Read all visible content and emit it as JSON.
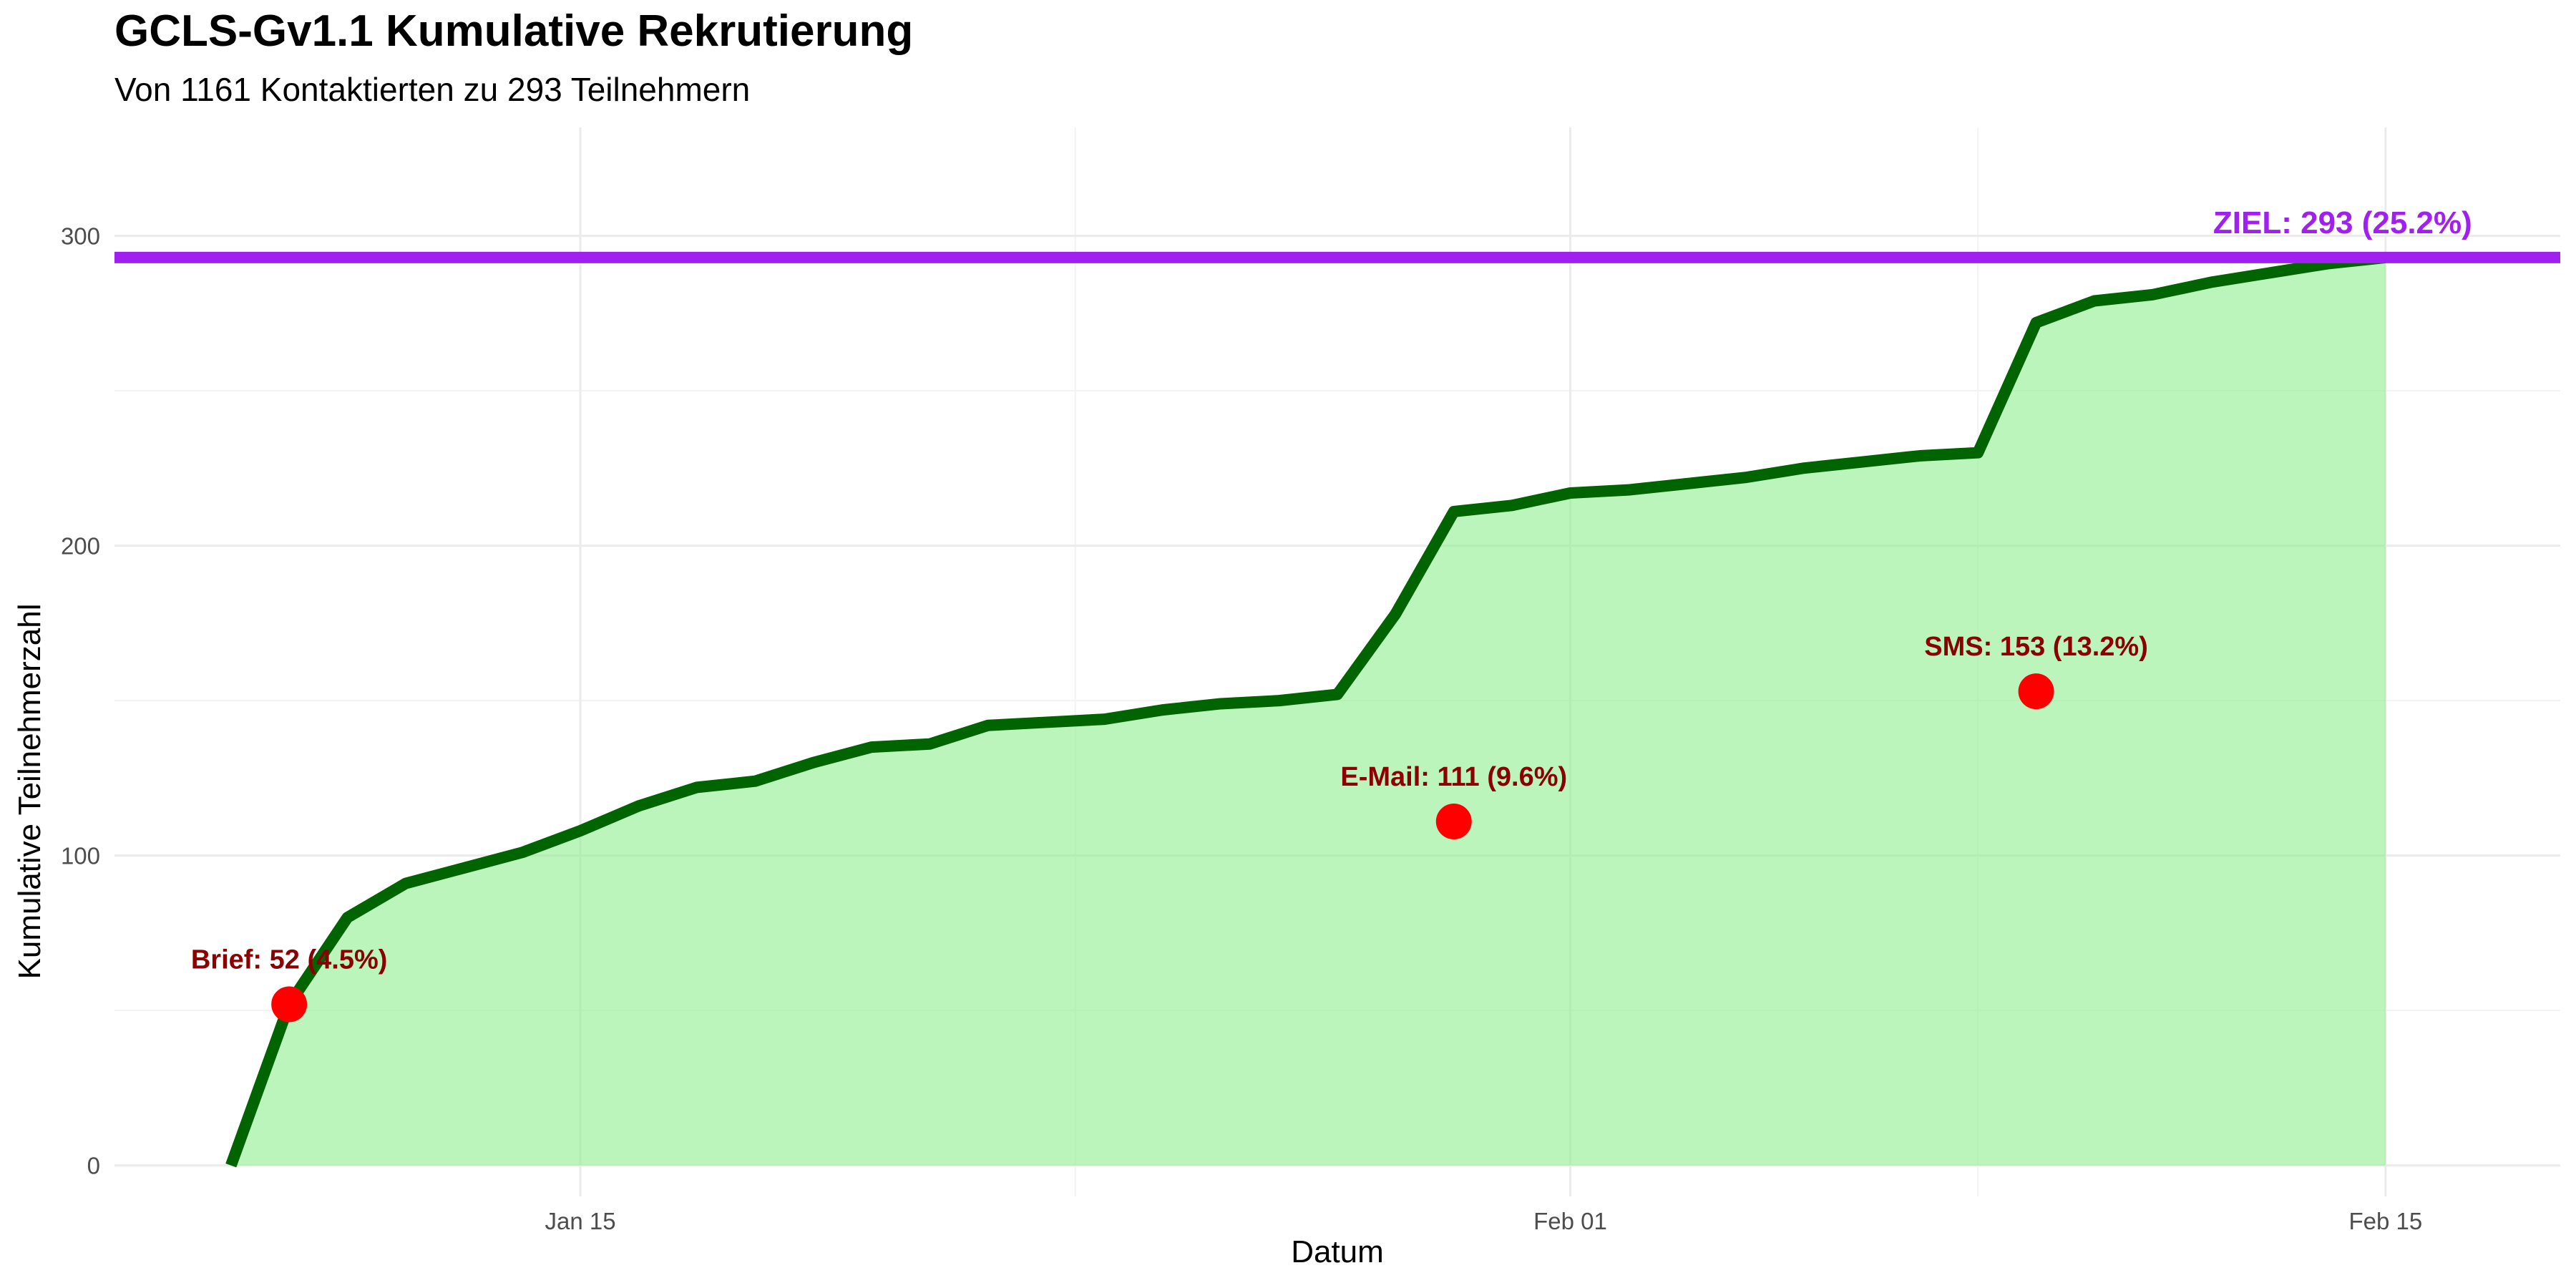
{
  "chart_data": {
    "type": "area",
    "title": "GCLS-Gv1.1 Kumulative Rekrutierung",
    "subtitle": "Von 1161 Kontaktierten zu 293 Teilnehmern",
    "xlabel": "Datum",
    "ylabel": "Kumulative Teilnehmerzahl",
    "x_ticks": [
      {
        "date": "2025-01-15",
        "label": "Jan 15"
      },
      {
        "date": "2025-02-01",
        "label": "Feb 01"
      },
      {
        "date": "2025-02-15",
        "label": "Feb 15"
      }
    ],
    "y_ticks": [
      0,
      100,
      200,
      300
    ],
    "xlim": [
      "2025-01-07",
      "2025-02-18"
    ],
    "ylim": [
      -10,
      335
    ],
    "grid": true,
    "series": [
      {
        "values": [
          {
            "x": "2025-01-09",
            "y": 0
          },
          {
            "x": "2025-01-10",
            "y": 52
          },
          {
            "x": "2025-01-11",
            "y": 80
          },
          {
            "x": "2025-01-12",
            "y": 91
          },
          {
            "x": "2025-01-13",
            "y": 96
          },
          {
            "x": "2025-01-14",
            "y": 101
          },
          {
            "x": "2025-01-15",
            "y": 108
          },
          {
            "x": "2025-01-16",
            "y": 116
          },
          {
            "x": "2025-01-17",
            "y": 122
          },
          {
            "x": "2025-01-18",
            "y": 124
          },
          {
            "x": "2025-01-19",
            "y": 130
          },
          {
            "x": "2025-01-20",
            "y": 135
          },
          {
            "x": "2025-01-21",
            "y": 136
          },
          {
            "x": "2025-01-22",
            "y": 142
          },
          {
            "x": "2025-01-23",
            "y": 143
          },
          {
            "x": "2025-01-24",
            "y": 144
          },
          {
            "x": "2025-01-25",
            "y": 147
          },
          {
            "x": "2025-01-26",
            "y": 149
          },
          {
            "x": "2025-01-27",
            "y": 150
          },
          {
            "x": "2025-01-28",
            "y": 152
          },
          {
            "x": "2025-01-29",
            "y": 178
          },
          {
            "x": "2025-01-30",
            "y": 211
          },
          {
            "x": "2025-01-31",
            "y": 213
          },
          {
            "x": "2025-02-01",
            "y": 217
          },
          {
            "x": "2025-02-02",
            "y": 218
          },
          {
            "x": "2025-02-03",
            "y": 220
          },
          {
            "x": "2025-02-04",
            "y": 222
          },
          {
            "x": "2025-02-05",
            "y": 225
          },
          {
            "x": "2025-02-06",
            "y": 227
          },
          {
            "x": "2025-02-07",
            "y": 229
          },
          {
            "x": "2025-02-08",
            "y": 230
          },
          {
            "x": "2025-02-09",
            "y": 272
          },
          {
            "x": "2025-02-10",
            "y": 279
          },
          {
            "x": "2025-02-11",
            "y": 281
          },
          {
            "x": "2025-02-12",
            "y": 285
          },
          {
            "x": "2025-02-13",
            "y": 288
          },
          {
            "x": "2025-02-14",
            "y": 291
          },
          {
            "x": "2025-02-15",
            "y": 293
          }
        ]
      }
    ],
    "target": {
      "value": 293,
      "label": "ZIEL: 293 (25.2%)"
    },
    "milestones": [
      {
        "x": "2025-01-10",
        "y": 52,
        "label": "Brief: 52 (4.5%)"
      },
      {
        "x": "2025-01-30",
        "y": 111,
        "label": "E-Mail: 111 (9.6%)"
      },
      {
        "x": "2025-02-09",
        "y": 153,
        "label": "SMS: 153 (13.2%)"
      }
    ],
    "colors": {
      "line": "#006400",
      "fill": "#90ee90",
      "target": "#a020f0",
      "point": "#ff0000",
      "annotation": "#8b0000",
      "grid_major": "#ebebeb",
      "grid_minor": "#f3f3f3"
    }
  }
}
